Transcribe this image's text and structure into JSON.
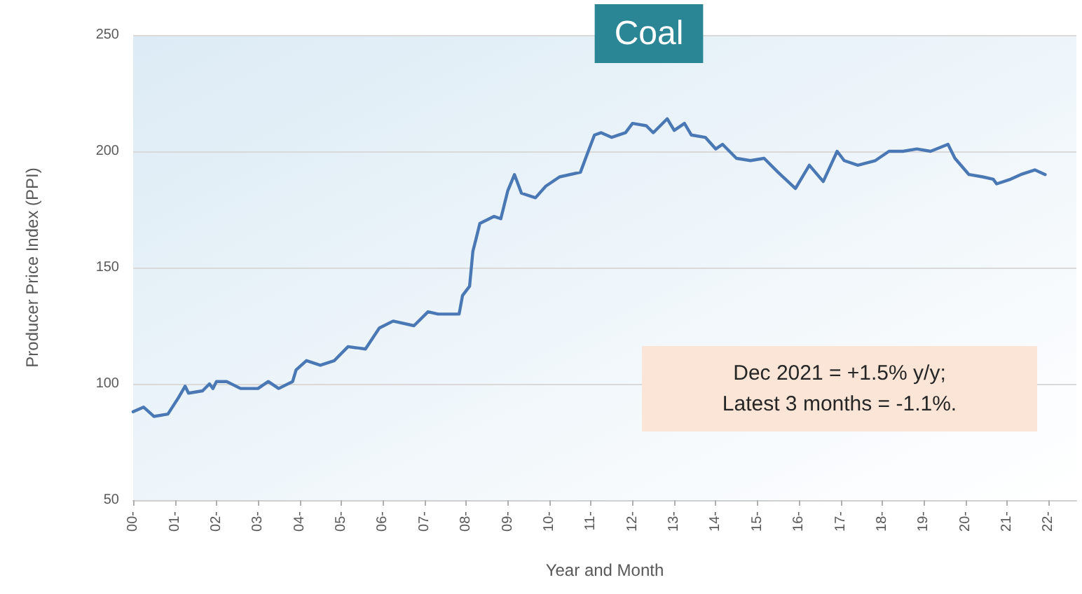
{
  "chart_data": {
    "type": "line",
    "title": "Coal",
    "xlabel": "Year and Month",
    "ylabel": "Producer Price Index (PPI)",
    "annotations": [
      "Dec 2021 = +1.5% y/y;\nLatest 3 months = -1.1%."
    ],
    "x": [
      "2000-01",
      "2000-04",
      "2000-07",
      "2000-11",
      "2001-02",
      "2001-04",
      "2001-05",
      "2001-09",
      "2001-11",
      "2001-12",
      "2002-01",
      "2002-04",
      "2002-08",
      "2003-01",
      "2003-04",
      "2003-07",
      "2003-11",
      "2003-12",
      "2004-03",
      "2004-07",
      "2004-11",
      "2005-03",
      "2005-08",
      "2005-12",
      "2006-04",
      "2006-10",
      "2007-02",
      "2007-05",
      "2007-11",
      "2007-12",
      "2008-02",
      "2008-03",
      "2008-04",
      "2008-05",
      "2008-09",
      "2008-11",
      "2009-01",
      "2009-03",
      "2009-05",
      "2009-09",
      "2009-12",
      "2010-04",
      "2010-10",
      "2010-12",
      "2011-02",
      "2011-04",
      "2011-07",
      "2011-11",
      "2012-01",
      "2012-05",
      "2012-07",
      "2012-11",
      "2013-01",
      "2013-04",
      "2013-06",
      "2013-10",
      "2014-01",
      "2014-03",
      "2014-07",
      "2014-11",
      "2015-03",
      "2015-07",
      "2015-12",
      "2016-04",
      "2016-08",
      "2016-12",
      "2017-02",
      "2017-06",
      "2017-11",
      "2018-03",
      "2018-07",
      "2018-11",
      "2019-03",
      "2019-08",
      "2019-10",
      "2020-02",
      "2020-06",
      "2020-09",
      "2020-10",
      "2021-02",
      "2021-05",
      "2021-09",
      "2021-12"
    ],
    "values": [
      88,
      90,
      86,
      87,
      94,
      99,
      96,
      97,
      100,
      98,
      101,
      101,
      98,
      98,
      101,
      98,
      101,
      106,
      110,
      108,
      110,
      116,
      115,
      124,
      127,
      125,
      131,
      130,
      130,
      138,
      142,
      157,
      163,
      169,
      172,
      171,
      183,
      190,
      182,
      180,
      185,
      189,
      191,
      199,
      207,
      208,
      206,
      208,
      212,
      211,
      208,
      214,
      209,
      212,
      207,
      206,
      201,
      203,
      197,
      196,
      197,
      191,
      184,
      194,
      187,
      200,
      196,
      194,
      196,
      200,
      200,
      201,
      200,
      203,
      197,
      190,
      189,
      188,
      186,
      188,
      190,
      192,
      190
    ],
    "color": "#4a78b5",
    "xlim": [
      "2000-01",
      "2022-09"
    ],
    "xticks": [
      {
        "value": "2000-01",
        "label": "00-"
      },
      {
        "value": "2001-01",
        "label": "01-"
      },
      {
        "value": "2002-01",
        "label": "02-"
      },
      {
        "value": "2003-01",
        "label": "03-"
      },
      {
        "value": "2004-01",
        "label": "04-"
      },
      {
        "value": "2005-01",
        "label": "05-"
      },
      {
        "value": "2006-01",
        "label": "06-"
      },
      {
        "value": "2007-01",
        "label": "07-"
      },
      {
        "value": "2008-01",
        "label": "08-"
      },
      {
        "value": "2009-01",
        "label": "09-"
      },
      {
        "value": "2010-01",
        "label": "10-"
      },
      {
        "value": "2011-01",
        "label": "11-"
      },
      {
        "value": "2012-01",
        "label": "12-"
      },
      {
        "value": "2013-01",
        "label": "13-"
      },
      {
        "value": "2014-01",
        "label": "14-"
      },
      {
        "value": "2015-01",
        "label": "15-"
      },
      {
        "value": "2016-01",
        "label": "16-"
      },
      {
        "value": "2017-01",
        "label": "17-"
      },
      {
        "value": "2018-01",
        "label": "18-"
      },
      {
        "value": "2019-01",
        "label": "19-"
      },
      {
        "value": "2020-01",
        "label": "20-"
      },
      {
        "value": "2021-01",
        "label": "21-"
      },
      {
        "value": "2022-01",
        "label": "22-"
      }
    ],
    "ylim": [
      50,
      250
    ],
    "yticks": [
      50,
      100,
      150,
      200,
      250
    ],
    "grid": "y"
  }
}
